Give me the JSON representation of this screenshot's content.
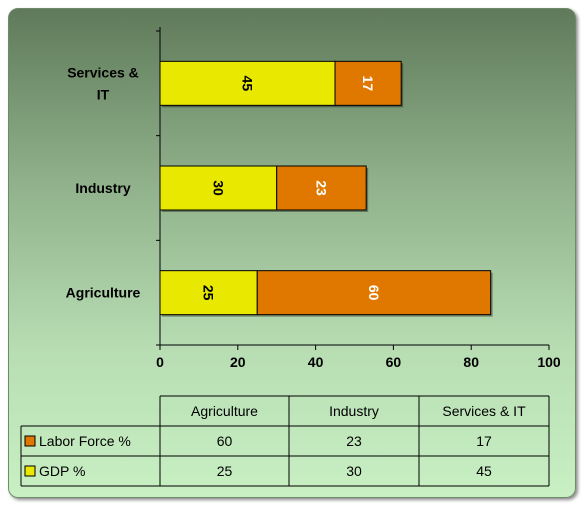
{
  "chart_data": {
    "type": "bar",
    "orientation": "horizontal",
    "stacked": true,
    "categories": [
      "Agriculture",
      "Industry",
      "Services & IT"
    ],
    "category_display": [
      "Agriculture",
      "Industry",
      "Services &\nIT"
    ],
    "series": [
      {
        "name": "GDP %",
        "values": [
          25,
          30,
          45
        ],
        "color": "#e8e800",
        "label_color": "#000000"
      },
      {
        "name": "Labor Force %",
        "values": [
          60,
          23,
          17
        ],
        "color": "#e07800",
        "label_color": "#ffffff"
      }
    ],
    "xlim": [
      0,
      100
    ],
    "xticks": [
      "0",
      "20",
      "40",
      "60",
      "80",
      "100"
    ],
    "title": "",
    "xlabel": "",
    "ylabel": "",
    "grid": false,
    "data_table": {
      "headers": [
        "Agriculture",
        "Industry",
        "Services & IT"
      ],
      "rows": [
        {
          "label": "Labor Force %",
          "values": [
            "60",
            "23",
            "17"
          ],
          "color": "#e07800"
        },
        {
          "label": "GDP %",
          "values": [
            "25",
            "30",
            "45"
          ],
          "color": "#e8e800"
        }
      ]
    }
  }
}
